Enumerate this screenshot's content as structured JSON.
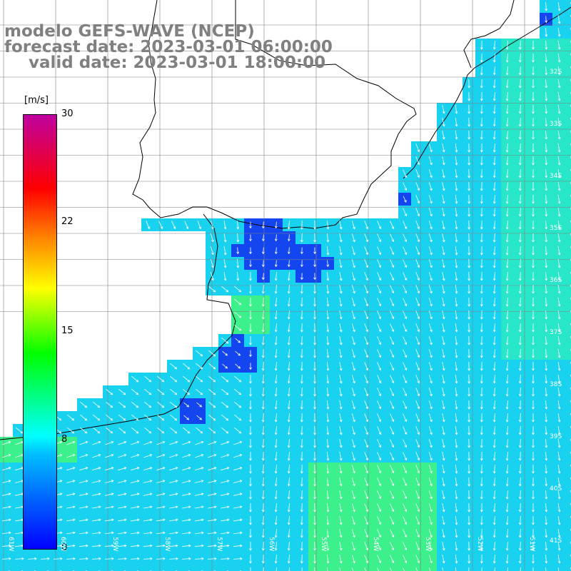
{
  "title": {
    "line1": "modelo GEFS-WAVE (NCEP)",
    "line2": "forecast date: 2023-03-01 06:00:00",
    "line3": "valid date: 2023-03-01 18:00:00"
  },
  "colorbar": {
    "unit": "[m/s]",
    "ticks": [
      "30",
      "22",
      "15",
      "8",
      "0"
    ],
    "colors": [
      "#0000ff",
      "#00c0ff",
      "#00ffff",
      "#00ff00",
      "#ffff00",
      "#ff8000",
      "#ff0000",
      "#c000a0"
    ]
  },
  "lat_labels": [
    "32S",
    "33S",
    "34S",
    "35S",
    "36S",
    "37S",
    "38S",
    "39S",
    "40S",
    "41S"
  ],
  "lon_labels": [
    "61W",
    "60W",
    "59W",
    "58W",
    "57W",
    "56W",
    "55W",
    "54W",
    "53W",
    "52W",
    "51W"
  ],
  "colors": {
    "ocean_base": "#19d2f0",
    "land": "#ffffff",
    "grid": "#808080",
    "coast": "#000000",
    "arrow": "#ffffff"
  }
}
